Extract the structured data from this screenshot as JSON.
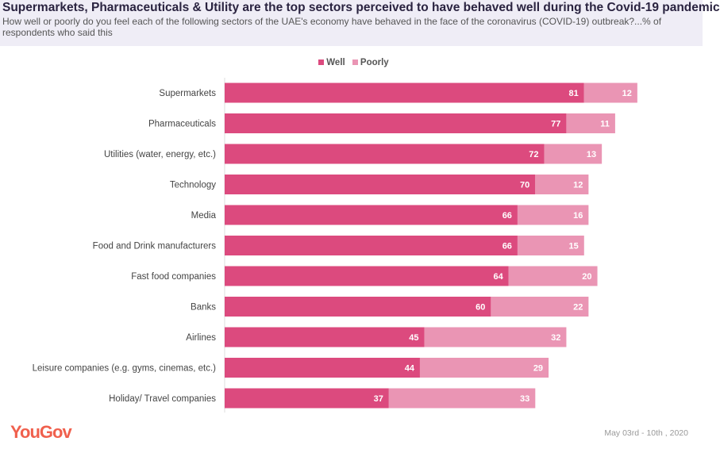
{
  "header": {
    "title": "Supermarkets, Pharmaceuticals & Utility are the top sectors perceived to have behaved well during the Covid-19 pandemic",
    "subtitle": "How well or poorly do you feel each of the following sectors of the UAE's economy have behaved in the face of the coronavirus (COVID-19) outbreak?...% of respondents who said this"
  },
  "footer": {
    "logo": "YouGov",
    "date": "May 03rd - 10th , 2020"
  },
  "chart_data": {
    "type": "bar",
    "orientation": "horizontal",
    "stacked": true,
    "categories": [
      "Supermarkets",
      "Pharmaceuticals",
      "Utilities (water, energy, etc.)",
      "Technology",
      "Media",
      "Food and Drink manufacturers",
      "Fast food companies",
      "Banks",
      "Airlines",
      "Leisure companies (e.g. gyms, cinemas, etc.)",
      "Holiday/ Travel companies"
    ],
    "series": [
      {
        "name": "Well",
        "color": "#dc4a7e",
        "values": [
          81,
          77,
          72,
          70,
          66,
          66,
          64,
          60,
          45,
          44,
          37
        ]
      },
      {
        "name": "Poorly",
        "color": "#ea95b4",
        "values": [
          12,
          11,
          13,
          12,
          16,
          15,
          20,
          22,
          32,
          29,
          33
        ]
      }
    ],
    "legend": "top-center",
    "grid": false
  }
}
